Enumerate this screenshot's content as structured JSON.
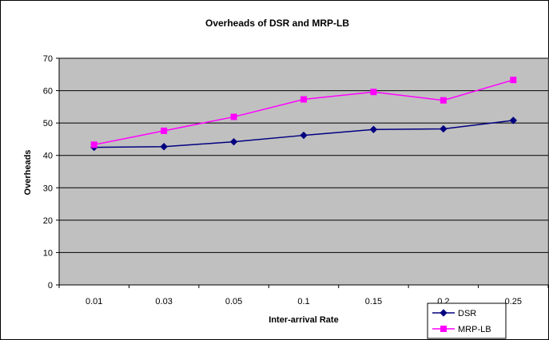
{
  "chart_data": {
    "type": "line",
    "title": "Overheads of DSR and MRP-LB",
    "xlabel": "Inter-arrival Rate",
    "ylabel": "Overheads",
    "categories": [
      "0.01",
      "0.03",
      "0.05",
      "0.1",
      "0.15",
      "0.2",
      "0.25"
    ],
    "ylim": [
      0,
      70
    ],
    "yticks": [
      0,
      10,
      20,
      30,
      40,
      50,
      60,
      70
    ],
    "grid": true,
    "legend_position": "bottom-right",
    "plot_background": "#c0c0c0",
    "series": [
      {
        "name": "DSR",
        "color": "#000080",
        "marker": "diamond",
        "values": [
          42.5,
          42.7,
          44.2,
          46.2,
          48.0,
          48.2,
          50.8
        ]
      },
      {
        "name": "MRP-LB",
        "color": "#ff00ff",
        "marker": "square",
        "values": [
          43.3,
          47.6,
          51.9,
          57.3,
          59.6,
          57.0,
          63.3
        ]
      }
    ]
  }
}
